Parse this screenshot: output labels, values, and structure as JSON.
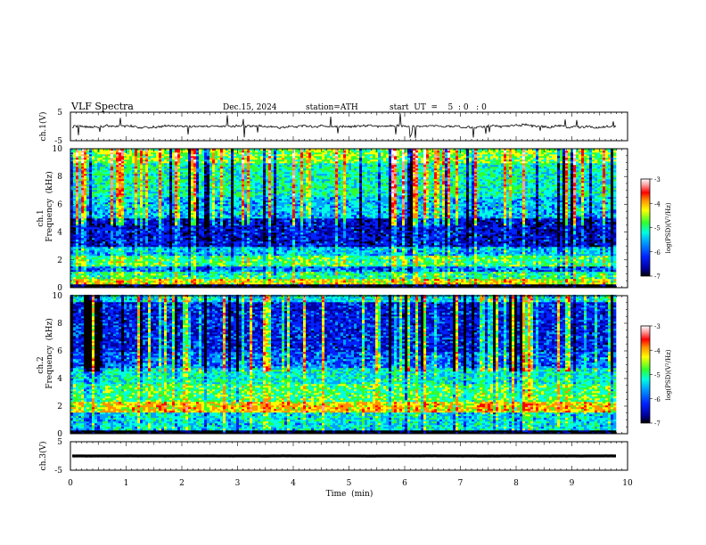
{
  "header": {
    "title": "VLF  Spectra",
    "date": "Dec.15, 2024",
    "station": "station=ATH",
    "start": "start  UT  =    5  : 0   : 0"
  },
  "chart_data": [
    {
      "type": "line",
      "panel": "ch1-waveform",
      "ylabel": "ch.1(V)",
      "yticks": [
        "5",
        "-5"
      ],
      "ylim": [
        -5,
        5
      ],
      "xlim": [
        0,
        10
      ],
      "data_extent_min": 9.8,
      "baseline": 0,
      "color": "#000000"
    },
    {
      "type": "heatmap",
      "panel": "ch1-spectrogram",
      "ylabel": [
        "ch.1",
        "Frequency  (kHz)"
      ],
      "yticks": [
        "10",
        "8",
        "6",
        "4",
        "2",
        "0"
      ],
      "ylim": [
        0,
        10
      ],
      "xlim": [
        0,
        10
      ],
      "data_extent_min": 9.8,
      "colorbar": {
        "label": "log(PSD)(V²/Hz)",
        "ticks": [
          "-3",
          "-4",
          "-5",
          "-6",
          "-7"
        ],
        "range": [
          -7,
          -3
        ]
      }
    },
    {
      "type": "heatmap",
      "panel": "ch2-spectrogram",
      "ylabel": [
        "ch.2",
        "Frequency  (kHz)"
      ],
      "yticks": [
        "10",
        "8",
        "6",
        "4",
        "2",
        "0"
      ],
      "ylim": [
        0,
        10
      ],
      "xlim": [
        0,
        10
      ],
      "data_extent_min": 9.8,
      "colorbar": {
        "label": "log(PSD)(V²/Hz)",
        "ticks": [
          "-3",
          "-4",
          "-5",
          "-6",
          "-7"
        ],
        "range": [
          -7,
          -3
        ]
      }
    },
    {
      "type": "line",
      "panel": "ch3-waveform",
      "ylabel": "ch.3(V)",
      "yticks": [
        "5",
        "-5"
      ],
      "ylim": [
        -5,
        5
      ],
      "xlim": [
        0,
        10
      ],
      "data_extent_min": 9.8,
      "baseline": 0,
      "color": "#000000"
    }
  ],
  "xaxis": {
    "label": "Time  (min)",
    "ticks": [
      "0",
      "1",
      "2",
      "3",
      "4",
      "5",
      "6",
      "7",
      "8",
      "9",
      "10"
    ]
  },
  "colorscale": [
    "#000000",
    "#0000a0",
    "#0022ff",
    "#00a0ff",
    "#00ffe0",
    "#30ff30",
    "#ffff00",
    "#ff9000",
    "#ff0000",
    "#ffa0a0",
    "#ffffff"
  ]
}
